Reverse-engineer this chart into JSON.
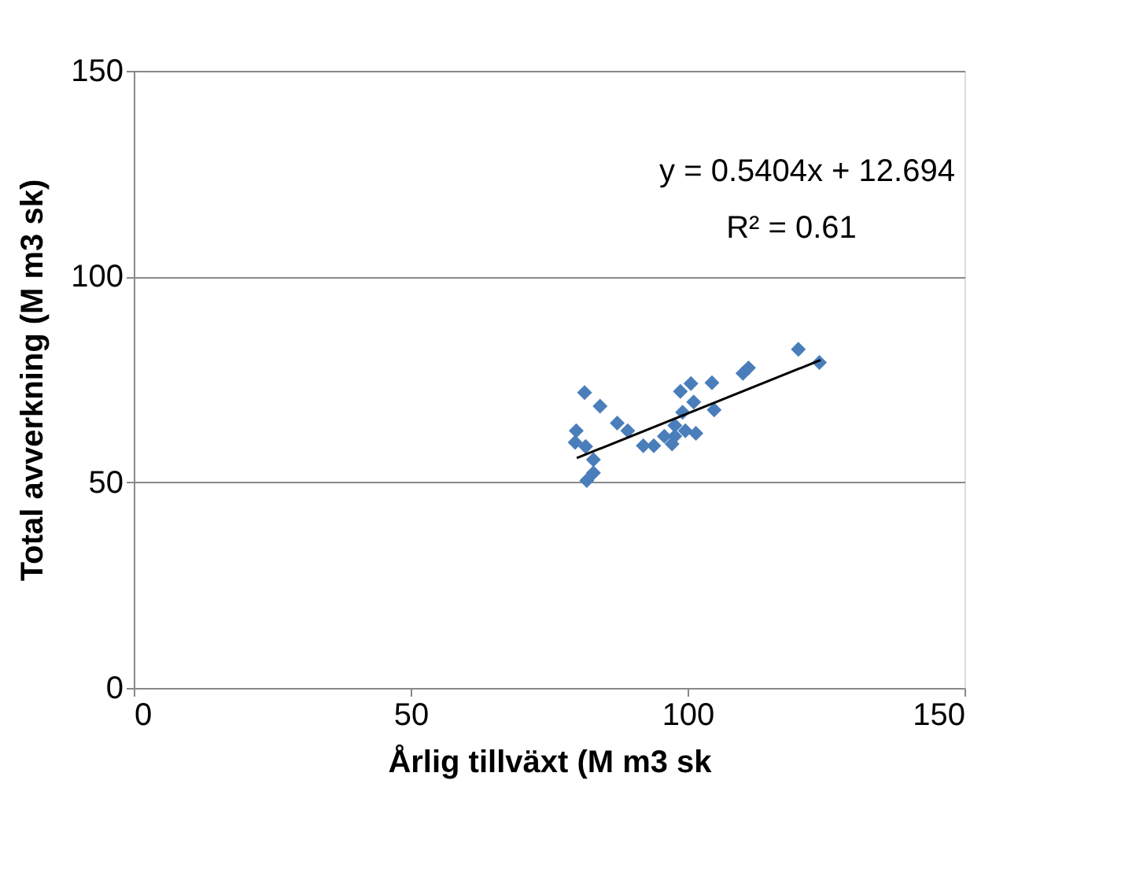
{
  "chart_data": {
    "type": "scatter",
    "xlabel": "Årlig tillväxt (M m3 sk",
    "ylabel": "Total avverkning (M m3 sk)",
    "xlim": [
      0,
      150
    ],
    "xticks": [
      0,
      50,
      100,
      150
    ],
    "ylim": [
      0,
      150
    ],
    "yticks": [
      0,
      50,
      100,
      150
    ],
    "grid": "y",
    "series": [
      {
        "color": "#4a7ebb",
        "marker": "diamond",
        "x": [
          81.4,
          84.2,
          79.9,
          79.7,
          81.6,
          83.0,
          83.0,
          81.8,
          87.3,
          89.2,
          92.0,
          93.9,
          95.8,
          97.7,
          97.7,
          99.6,
          101.5,
          99.1,
          98.7,
          100.6,
          101.1,
          104.4,
          104.8,
          110.0,
          111.0,
          120.0,
          123.8,
          97.2
        ],
        "values": [
          71.8,
          68.5,
          62.5,
          59.7,
          58.7,
          55.5,
          52.3,
          50.4,
          64.4,
          62.5,
          58.9,
          58.9,
          61.2,
          61.2,
          63.8,
          62.5,
          61.9,
          67.0,
          72.1,
          74.0,
          69.5,
          74.2,
          67.6,
          76.5,
          77.8,
          82.3,
          79.1,
          59.3
        ]
      },
      {
        "type": "line",
        "color": "#000000",
        "marker": "none",
        "x": [
          80,
          124
        ],
        "values": [
          55.9,
          79.7
        ]
      }
    ],
    "annotations": [
      "y = 0.5404x + 12.694",
      "R² = 0.61"
    ]
  }
}
